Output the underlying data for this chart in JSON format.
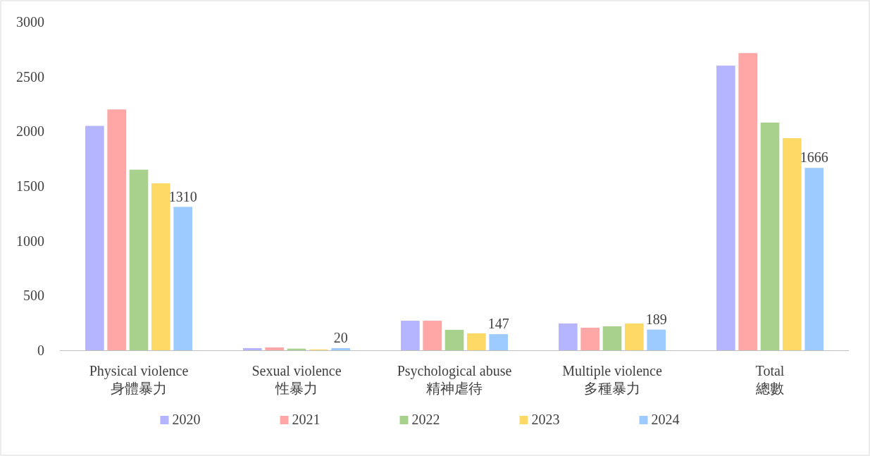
{
  "chart_data": {
    "type": "bar",
    "categories": [
      "Physical violence\n身體暴力",
      "Sexual violence\n性暴力",
      "Psychological abuse\n精神虐待",
      "Multiple violence\n多種暴力",
      "Total\n總數"
    ],
    "series": [
      {
        "name": "2020",
        "color": "#b4b4ff",
        "values": [
          2050,
          20,
          270,
          245,
          2600
        ]
      },
      {
        "name": "2021",
        "color": "#ffa7a7",
        "values": [
          2200,
          26,
          270,
          206,
          2715
        ]
      },
      {
        "name": "2022",
        "color": "#a9d18e",
        "values": [
          1650,
          15,
          187,
          219,
          2080
        ]
      },
      {
        "name": "2023",
        "color": "#ffd966",
        "values": [
          1525,
          8,
          155,
          245,
          1938
        ]
      },
      {
        "name": "2024",
        "color": "#9dcbff",
        "values": [
          1310,
          20,
          147,
          189,
          1666
        ],
        "value_labels": [
          "1310",
          "20",
          "147",
          "189",
          "1666"
        ]
      }
    ],
    "ylim": [
      0,
      3000
    ],
    "yticks": [
      0,
      500,
      1000,
      1500,
      2000,
      2500,
      3000
    ],
    "legend": "bottom"
  }
}
